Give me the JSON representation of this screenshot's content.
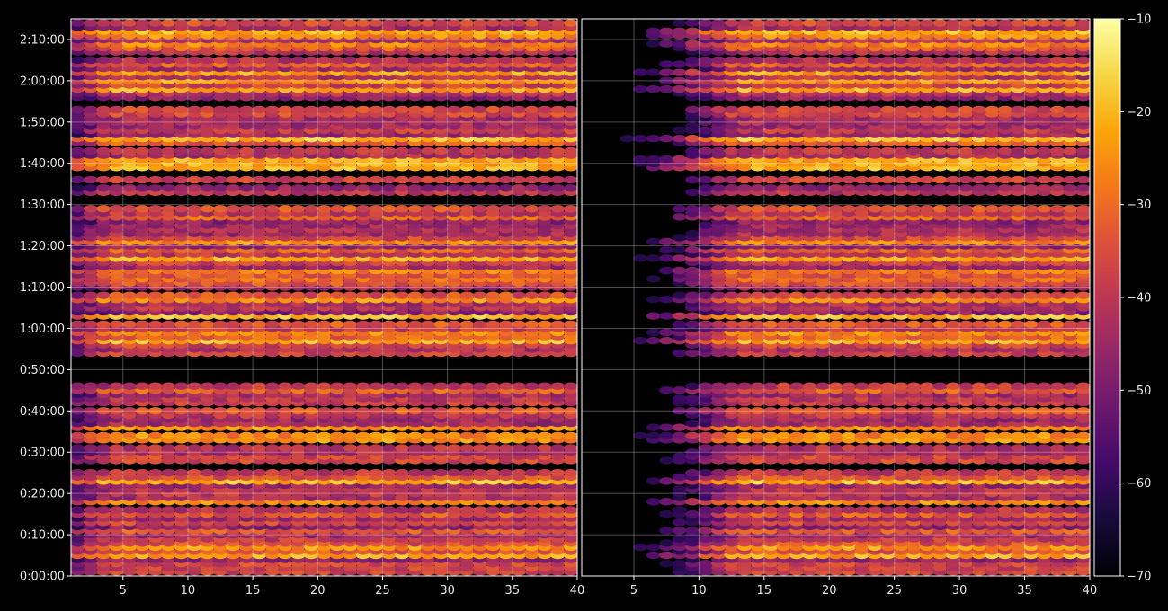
{
  "chart_data": {
    "type": "heatmap",
    "title": "",
    "panels": [
      {
        "name": "",
        "xlim": [
          1,
          40
        ],
        "ylim_seconds": [
          0,
          8100
        ],
        "x_ticks": [
          "5",
          "10",
          "15",
          "20",
          "25",
          "30",
          "35",
          "40"
        ],
        "x_tick_values": [
          5,
          10,
          15,
          20,
          25,
          30,
          35,
          40
        ],
        "left_fade_until_x": 1
      },
      {
        "name": "",
        "xlim": [
          1,
          40
        ],
        "ylim_seconds": [
          0,
          8100
        ],
        "x_ticks": [
          "5",
          "10",
          "15",
          "20",
          "25",
          "30",
          "35",
          "40"
        ],
        "x_tick_values": [
          5,
          10,
          15,
          20,
          25,
          30,
          35,
          40
        ],
        "left_fade_until_x": 10
      }
    ],
    "y_ticks": [
      "0:00:00",
      "0:10:00",
      "0:20:00",
      "0:30:00",
      "0:40:00",
      "0:50:00",
      "1:00:00",
      "1:10:00",
      "1:20:00",
      "1:30:00",
      "1:40:00",
      "1:50:00",
      "2:00:00",
      "2:10:00"
    ],
    "y_tick_values_seconds": [
      0,
      600,
      1200,
      1800,
      2400,
      3000,
      3600,
      4200,
      4800,
      5400,
      6000,
      6600,
      7200,
      7800
    ],
    "colorbar": {
      "colormap": "inferno",
      "vmin": -70,
      "vmax": -10,
      "ticks": [
        "−70",
        "−60",
        "−50",
        "−40",
        "−30",
        "−20",
        "−10"
      ],
      "tick_values": [
        -70,
        -60,
        -50,
        -40,
        -30,
        -20,
        -10
      ]
    },
    "gaps_seconds": [
      [
        2880,
        3180
      ],
      [
        5400,
        5520
      ]
    ],
    "bright_bands_seconds": [
      300,
      420,
      1080,
      1380,
      1980,
      2040,
      2160,
      3420,
      3540,
      3780,
      4020,
      4440,
      4620,
      4860,
      5940,
      6000,
      6060,
      6360,
      7080,
      7200,
      7320,
      7740,
      7860,
      7920
    ],
    "grid": true,
    "legend": "none"
  },
  "colors": {
    "background": "#000000",
    "text": "#e8e8e8",
    "grid": "#ffffff"
  }
}
